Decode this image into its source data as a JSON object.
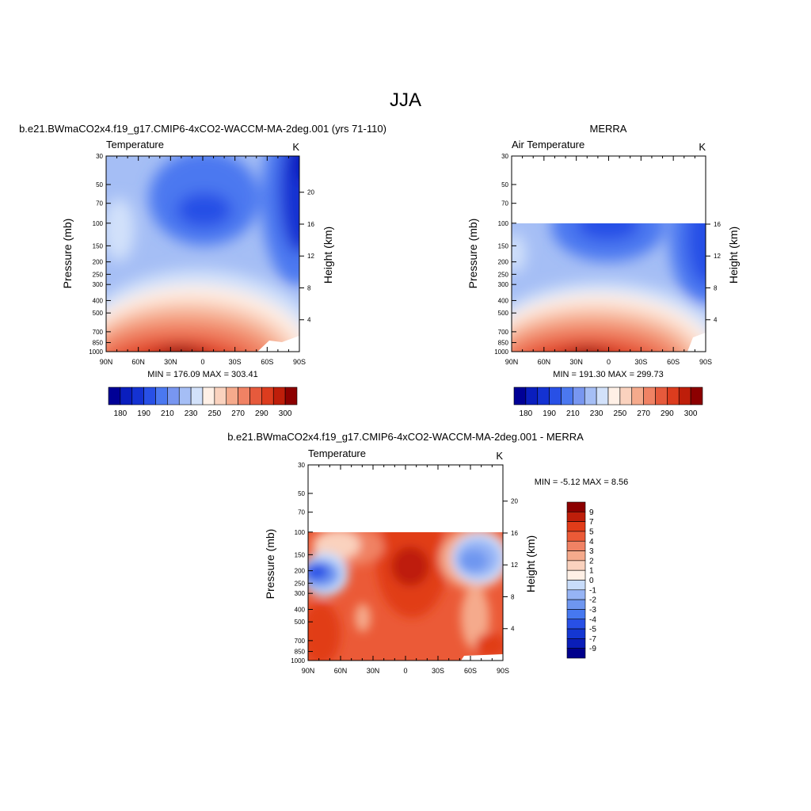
{
  "page_title": "JJA",
  "colors": {
    "temp_levels": [
      "#000096",
      "#0a1ebe",
      "#1432d2",
      "#2850e6",
      "#4b78f0",
      "#7896f0",
      "#a5bef5",
      "#d2e1fa",
      "#fff0e6",
      "#fad2be",
      "#f5aa8c",
      "#f08264",
      "#e65a3c",
      "#dc3c1e",
      "#be1e0a",
      "#8c0000"
    ],
    "diff_levels": [
      "#00008c",
      "#0a1eb9",
      "#1437d2",
      "#2850e6",
      "#4678f0",
      "#6e96f0",
      "#96b4f5",
      "#c8dcfa",
      "#fff0e6",
      "#fad2be",
      "#f5aa8c",
      "#f08264",
      "#eb5a37",
      "#e13c19",
      "#be1e0a",
      "#8c0000"
    ]
  },
  "chart_data": [
    {
      "type": "heatmap",
      "panel_title": "b.e21.BWmaCO2x4.f19_g17.CMIP6-4xCO2-WACCM-MA-2deg.001 (yrs 71-110)",
      "variable": "Temperature",
      "units": "K",
      "ylabel": "Pressure (mb)",
      "ylabel_right": "Height (km)",
      "x_ticks": [
        "90N",
        "60N",
        "30N",
        "0",
        "30S",
        "60S",
        "90S"
      ],
      "y_ticks": [
        "30",
        "50",
        "70",
        "100",
        "150",
        "200",
        "250",
        "300",
        "400",
        "500",
        "700",
        "850",
        "1000"
      ],
      "y_right_ticks": [
        "20",
        "16",
        "12",
        "8",
        "4"
      ],
      "data_top_mb": 30,
      "stats": "MIN = 176.09  MAX = 303.41",
      "colorbar_ticks": [
        "180",
        "190",
        "210",
        "230",
        "250",
        "270",
        "290",
        "300"
      ]
    },
    {
      "type": "heatmap",
      "panel_title": "MERRA",
      "variable": "Air Temperature",
      "units": "K",
      "ylabel": "Pressure (mb)",
      "ylabel_right": "Height (km)",
      "x_ticks": [
        "90N",
        "60N",
        "30N",
        "0",
        "30S",
        "60S",
        "90S"
      ],
      "y_ticks": [
        "30",
        "50",
        "70",
        "100",
        "150",
        "200",
        "250",
        "300",
        "400",
        "500",
        "700",
        "850",
        "1000"
      ],
      "y_right_ticks": [
        "16",
        "12",
        "8",
        "4"
      ],
      "data_top_mb": 100,
      "stats": "MIN = 191.30  MAX = 299.73",
      "colorbar_ticks": [
        "180",
        "190",
        "210",
        "230",
        "250",
        "270",
        "290",
        "300"
      ]
    },
    {
      "type": "heatmap",
      "panel_title": "b.e21.BWmaCO2x4.f19_g17.CMIP6-4xCO2-WACCM-MA-2deg.001 - MERRA",
      "variable": "Temperature",
      "units": "K",
      "ylabel": "Pressure (mb)",
      "ylabel_right": "Height (km)",
      "x_ticks": [
        "90N",
        "60N",
        "30N",
        "0",
        "30S",
        "60S",
        "90S"
      ],
      "y_ticks": [
        "30",
        "50",
        "70",
        "100",
        "150",
        "200",
        "250",
        "300",
        "400",
        "500",
        "700",
        "850",
        "1000"
      ],
      "y_right_ticks": [
        "20",
        "16",
        "12",
        "8",
        "4"
      ],
      "data_top_mb": 100,
      "stats": "MIN =  -5.12  MAX =   8.56",
      "colorbar_ticks": [
        "9",
        "7",
        "5",
        "4",
        "3",
        "2",
        "1",
        "0",
        "-1",
        "-2",
        "-3",
        "-4",
        "-5",
        "-7",
        "-9"
      ]
    }
  ]
}
